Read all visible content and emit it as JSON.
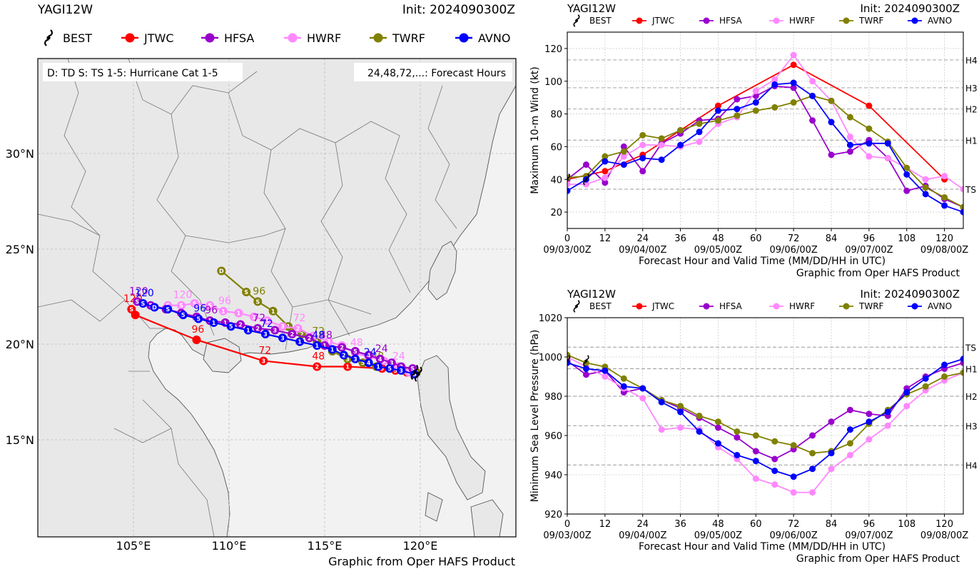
{
  "map": {
    "storm": "YAGI12W",
    "init": "Init: 2024090300Z",
    "legend": [
      {
        "name": "BEST",
        "color": "#000000"
      },
      {
        "name": "JTWC",
        "color": "#ff0000"
      },
      {
        "name": "HFSA",
        "color": "#9900cc"
      },
      {
        "name": "HWRF",
        "color": "#ff88ff"
      },
      {
        "name": "TWRF",
        "color": "#808000"
      },
      {
        "name": "AVNO",
        "color": "#0000ff"
      }
    ],
    "info_left": "D: TD  S: TS  1-5: Hurricane Cat 1-5",
    "info_right": "24,48,72,...: Forecast Hours",
    "lat_labels": [
      "30°N",
      "25°N",
      "20°N",
      "15°N"
    ],
    "lon_labels": [
      "105°E",
      "110°E",
      "115°E",
      "120°E"
    ],
    "credit": "Graphic from Oper HAFS Product",
    "land_color": "#eeeeee",
    "sea_color": "#f4f4f4"
  },
  "chart_data": [
    {
      "type": "line",
      "name": "wind",
      "title_left": "YAGI12W",
      "title_right": "Init: 2024090300Z",
      "xlabel": "Forecast Hour and Valid Time (MM/DD/HH in UTC)",
      "ylabel": "Maximum 10-m Wind (kt)",
      "credit": "Graphic from Oper HAFS Product",
      "xlim": [
        0,
        126
      ],
      "ylim": [
        10,
        130
      ],
      "xticks": [
        0,
        12,
        24,
        36,
        48,
        60,
        72,
        84,
        96,
        108,
        120
      ],
      "yticks": [
        20,
        40,
        60,
        80,
        100,
        120
      ],
      "date_labels": [
        {
          "x": 0,
          "label": "09/03/00Z"
        },
        {
          "x": 24,
          "label": "09/04/00Z"
        },
        {
          "x": 48,
          "label": "09/05/00Z"
        },
        {
          "x": 72,
          "label": "09/06/00Z"
        },
        {
          "x": 96,
          "label": "09/07/00Z"
        },
        {
          "x": 120,
          "label": "09/08/00Z"
        }
      ],
      "thresholds": [
        {
          "value": 34,
          "label": "TS"
        },
        {
          "value": 64,
          "label": "H1"
        },
        {
          "value": 83,
          "label": "H2"
        },
        {
          "value": 96,
          "label": "H3"
        },
        {
          "value": 113,
          "label": "H4"
        }
      ],
      "series": [
        {
          "name": "JTWC",
          "color": "#ff0000",
          "x": [
            0,
            12,
            24,
            36,
            48,
            72,
            96,
            120
          ],
          "y": [
            40,
            45,
            55,
            70,
            85,
            110,
            85,
            40
          ]
        },
        {
          "name": "HFSA",
          "color": "#9900cc",
          "x": [
            0,
            6,
            12,
            18,
            24,
            30,
            36,
            42,
            48,
            54,
            60,
            66,
            72,
            78,
            84,
            90,
            96,
            102,
            108,
            114,
            120,
            126
          ],
          "y": [
            40,
            49,
            38,
            60,
            45,
            62,
            68,
            76,
            77,
            89,
            91,
            97,
            96,
            76,
            55,
            57,
            64,
            53,
            33,
            36,
            28,
            23
          ]
        },
        {
          "name": "HWRF",
          "color": "#ff88ff",
          "x": [
            0,
            6,
            12,
            18,
            24,
            30,
            36,
            42,
            48,
            54,
            60,
            66,
            72,
            78,
            84,
            90,
            96,
            102,
            108,
            114,
            120,
            126
          ],
          "y": [
            37,
            37,
            41,
            54,
            61,
            61,
            60,
            63,
            74,
            78,
            94,
            101,
            116,
            100,
            88,
            66,
            54,
            53,
            47,
            40,
            42,
            34
          ]
        },
        {
          "name": "TWRF",
          "color": "#808000",
          "x": [
            0,
            6,
            12,
            18,
            24,
            30,
            36,
            42,
            48,
            54,
            60,
            66,
            72,
            78,
            84,
            90,
            96,
            102,
            108,
            114,
            120,
            126
          ],
          "y": [
            41,
            42,
            54,
            57,
            67,
            65,
            70,
            74,
            76,
            79,
            82,
            84,
            87,
            91,
            88,
            78,
            71,
            63,
            47,
            35,
            29,
            23
          ]
        },
        {
          "name": "AVNO",
          "color": "#0000ff",
          "x": [
            0,
            6,
            12,
            18,
            24,
            30,
            36,
            42,
            48,
            54,
            60,
            66,
            72,
            78,
            84,
            90,
            96,
            102,
            108,
            114,
            120,
            126
          ],
          "y": [
            33,
            40,
            51,
            49,
            53,
            52,
            61,
            69,
            82,
            83,
            87,
            98,
            99,
            91,
            75,
            61,
            62,
            62,
            43,
            31,
            24,
            20
          ]
        },
        {
          "name": "BEST",
          "color": "#000000",
          "x": [
            0,
            6
          ],
          "y": [
            40,
            40
          ],
          "marker": "storm"
        }
      ]
    },
    {
      "type": "line",
      "name": "pressure",
      "title_left": "YAGI12W",
      "title_right": "Init: 2024090300Z",
      "xlabel": "Forecast Hour and Valid Time (MM/DD/HH in UTC)",
      "ylabel": "Minimum Sea Level Pressure (hPa)",
      "credit": "Graphic from Oper HAFS Product",
      "xlim": [
        0,
        126
      ],
      "ylim": [
        920,
        1020
      ],
      "xticks": [
        0,
        12,
        24,
        36,
        48,
        60,
        72,
        84,
        96,
        108,
        120
      ],
      "yticks": [
        920,
        940,
        960,
        980,
        1000,
        1020
      ],
      "date_labels": [
        {
          "x": 0,
          "label": "09/03/00Z"
        },
        {
          "x": 24,
          "label": "09/04/00Z"
        },
        {
          "x": 48,
          "label": "09/05/00Z"
        },
        {
          "x": 72,
          "label": "09/06/00Z"
        },
        {
          "x": 96,
          "label": "09/07/00Z"
        },
        {
          "x": 120,
          "label": "09/08/00Z"
        }
      ],
      "thresholds": [
        {
          "value": 1005,
          "label": "TS"
        },
        {
          "value": 994,
          "label": "H1"
        },
        {
          "value": 980,
          "label": "H2"
        },
        {
          "value": 965,
          "label": "H3"
        },
        {
          "value": 945,
          "label": "H4"
        }
      ],
      "series": [
        {
          "name": "HFSA",
          "color": "#9900cc",
          "x": [
            0,
            6,
            12,
            18,
            24,
            30,
            36,
            42,
            48,
            54,
            60,
            66,
            72,
            78,
            84,
            90,
            96,
            102,
            108,
            114,
            120,
            126
          ],
          "y": [
            998,
            991,
            993,
            982,
            984,
            978,
            974,
            969,
            964,
            959,
            952,
            948,
            953,
            960,
            967,
            973,
            971,
            970,
            984,
            990,
            994,
            997
          ]
        },
        {
          "name": "HWRF",
          "color": "#ff88ff",
          "x": [
            0,
            6,
            12,
            18,
            24,
            30,
            36,
            42,
            48,
            54,
            60,
            66,
            72,
            78,
            84,
            90,
            96,
            102,
            108,
            114,
            120,
            126
          ],
          "y": [
            1000,
            995,
            990,
            984,
            979,
            963,
            964,
            963,
            954,
            948,
            938,
            935,
            931,
            931,
            943,
            950,
            958,
            965,
            975,
            983,
            988,
            992
          ]
        },
        {
          "name": "TWRF",
          "color": "#808000",
          "x": [
            0,
            6,
            12,
            18,
            24,
            30,
            36,
            42,
            48,
            54,
            60,
            66,
            72,
            78,
            84,
            90,
            96,
            102,
            108,
            114,
            120,
            126
          ],
          "y": [
            1001,
            997,
            995,
            989,
            984,
            978,
            975,
            970,
            967,
            962,
            960,
            957,
            955,
            951,
            952,
            956,
            966,
            973,
            981,
            985,
            990,
            992
          ]
        },
        {
          "name": "AVNO",
          "color": "#0000ff",
          "x": [
            0,
            6,
            12,
            18,
            24,
            30,
            36,
            42,
            48,
            54,
            60,
            66,
            72,
            78,
            84,
            90,
            96,
            102,
            108,
            114,
            120,
            126
          ],
          "y": [
            997,
            994,
            993,
            985,
            984,
            977,
            972,
            962,
            956,
            950,
            947,
            942,
            939,
            943,
            951,
            963,
            967,
            972,
            982,
            989,
            996,
            999
          ]
        },
        {
          "name": "BEST",
          "color": "#000000",
          "x": [
            0,
            6
          ],
          "y": [
            998,
            998
          ],
          "marker": "storm"
        }
      ]
    },
    {
      "type": "scatter",
      "name": "track",
      "title": "YAGI12W",
      "lon_range": [
        100,
        125
      ],
      "lat_range": [
        10,
        35
      ],
      "series": [
        {
          "name": "JTWC",
          "color": "#ff0000",
          "lon": [
            119.3,
            118.7,
            118.0,
            116.2,
            114.6,
            111.8,
            108.3,
            105.1,
            104.9
          ],
          "lat": [
            18.6,
            18.7,
            18.8,
            18.9,
            18.9,
            19.2,
            20.3,
            21.6,
            21.9
          ],
          "cat": [
            "5",
            "5",
            "5",
            "1",
            "2",
            "3",
            "",
            "",
            "S"
          ],
          "hours": [
            {
              "i": 4,
              "h": "48"
            },
            {
              "i": 5,
              "h": "72"
            },
            {
              "i": 6,
              "h": "96"
            },
            {
              "i": 8,
              "h": "120"
            }
          ]
        },
        {
          "name": "HFSA",
          "color": "#9900cc",
          "lon": [
            119.6,
            119.0,
            118.5,
            117.9,
            117.3,
            116.6,
            115.9,
            115.0,
            114.2,
            113.3,
            112.4,
            111.5,
            110.6,
            109.8,
            109.0,
            108.3,
            107.5,
            106.7,
            105.9,
            105.2
          ],
          "lat": [
            18.8,
            18.9,
            19.1,
            19.3,
            19.5,
            19.7,
            19.9,
            20.0,
            20.4,
            20.6,
            20.8,
            20.9,
            21.1,
            21.2,
            21.3,
            21.5,
            21.7,
            21.9,
            22.1,
            22.3
          ],
          "cat": [
            "S",
            "2",
            "3",
            "4",
            "4",
            "5",
            "2",
            "1",
            "2",
            "2",
            "3",
            "2",
            "2",
            "1",
            "1",
            "5",
            "S",
            "S",
            "5",
            "S"
          ],
          "hours": [
            {
              "i": 3,
              "h": "24"
            },
            {
              "i": 7,
              "h": "48"
            },
            {
              "i": 11,
              "h": "72"
            },
            {
              "i": 14,
              "h": "96"
            },
            {
              "i": 19,
              "h": "120"
            }
          ]
        },
        {
          "name": "HWRF",
          "color": "#ff88ff",
          "lon": [
            119.4,
            118.8,
            118.1,
            117.3,
            116.6,
            115.9,
            115.2,
            114.4,
            113.6,
            112.8,
            112.0,
            111.3,
            110.5,
            109.7,
            109.0,
            108.2,
            107.5,
            106.8
          ],
          "lat": [
            18.6,
            18.9,
            19.2,
            19.4,
            19.6,
            20.0,
            20.2,
            20.5,
            20.9,
            21.0,
            21.3,
            21.5,
            21.7,
            21.8,
            22.1,
            22.2,
            22.1,
            22.1
          ],
          "cat": [
            "5",
            "5",
            "5",
            "4",
            "2",
            "2",
            "3",
            "3",
            "2",
            "3",
            "1",
            "1",
            "1",
            "1",
            "S",
            "S",
            "S",
            "S"
          ],
          "hours": [
            {
              "i": 1,
              "h": "24"
            },
            {
              "i": 4,
              "h": "48"
            },
            {
              "i": 8,
              "h": "72"
            },
            {
              "i": 13,
              "h": "96"
            },
            {
              "i": 16,
              "h": "120"
            }
          ]
        },
        {
          "name": "TWRF",
          "color": "#808000",
          "lon": [
            119.8,
            119.1,
            118.4,
            117.7,
            117.0,
            116.2,
            115.4,
            114.6,
            113.8,
            113.1,
            112.3,
            111.5,
            110.9,
            109.6
          ],
          "lat": [
            18.6,
            18.7,
            18.8,
            18.9,
            19.1,
            19.3,
            19.7,
            20.2,
            20.6,
            21.0,
            21.8,
            22.3,
            22.8,
            23.9
          ],
          "cat": [
            "S",
            "2",
            "3",
            "4",
            "5",
            "3",
            "3",
            "1",
            "2",
            "1",
            "1",
            "S",
            "S",
            "D"
          ],
          "hours": [
            {
              "i": 3,
              "h": "48"
            },
            {
              "i": 7,
              "h": "72"
            },
            {
              "i": 11,
              "h": "96"
            }
          ]
        },
        {
          "name": "AVNO",
          "color": "#0000ff",
          "lon": [
            119.7,
            119.0,
            118.4,
            117.8,
            117.3,
            116.6,
            116.0,
            115.4,
            114.6,
            113.7,
            112.8,
            111.9,
            111.0,
            110.1,
            109.2,
            108.4,
            107.6,
            106.8,
            106.1,
            105.5
          ],
          "lat": [
            18.5,
            18.7,
            18.8,
            18.9,
            19.1,
            19.3,
            19.5,
            19.8,
            20.0,
            20.2,
            20.4,
            20.6,
            20.8,
            21.0,
            21.2,
            21.4,
            21.6,
            21.9,
            22.0,
            22.2
          ],
          "cat": [
            "S",
            "3",
            "5",
            "1",
            "4",
            "3",
            "2",
            "1",
            "1",
            "1",
            "3",
            "3",
            "1",
            "5",
            "1",
            "5",
            "5",
            "S",
            "D",
            "S"
          ],
          "hours": [
            {
              "i": 4,
              "h": "24"
            },
            {
              "i": 8,
              "h": "48"
            },
            {
              "i": 11,
              "h": "72"
            },
            {
              "i": 15,
              "h": "96"
            },
            {
              "i": 19,
              "h": "120"
            }
          ]
        },
        {
          "name": "BEST",
          "color": "#000000",
          "lon": [
            119.9,
            119.7
          ],
          "lat": [
            18.5,
            18.6
          ],
          "cat": [
            "S",
            "S"
          ],
          "hours": []
        }
      ]
    }
  ]
}
